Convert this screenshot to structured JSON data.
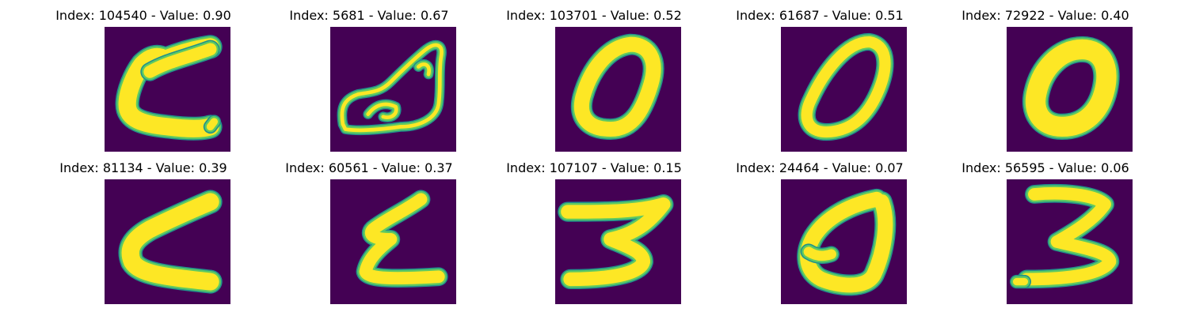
{
  "colors": {
    "background": "#440154",
    "stroke_core": "#fde725",
    "stroke_mid": "#5ec962",
    "stroke_edge": "#21918c"
  },
  "panels": [
    {
      "title": "Index: 104540 - Value: 0.90",
      "glyph": "C-shape"
    },
    {
      "title": "Index: 5681 - Value: 0.67",
      "glyph": "outline-loop"
    },
    {
      "title": "Index: 103701 - Value: 0.52",
      "glyph": "0"
    },
    {
      "title": "Index: 61687 - Value: 0.51",
      "glyph": "0"
    },
    {
      "title": "Index: 72922 - Value: 0.40",
      "glyph": "0"
    },
    {
      "title": "Index: 81134 - Value: 0.39",
      "glyph": "C-shape"
    },
    {
      "title": "Index: 60561 - Value: 0.37",
      "glyph": "E-shape"
    },
    {
      "title": "Index: 107107 - Value: 0.15",
      "glyph": "3"
    },
    {
      "title": "Index: 24464 - Value: 0.07",
      "glyph": "0"
    },
    {
      "title": "Index: 56595 - Value: 0.06",
      "glyph": "3"
    }
  ]
}
